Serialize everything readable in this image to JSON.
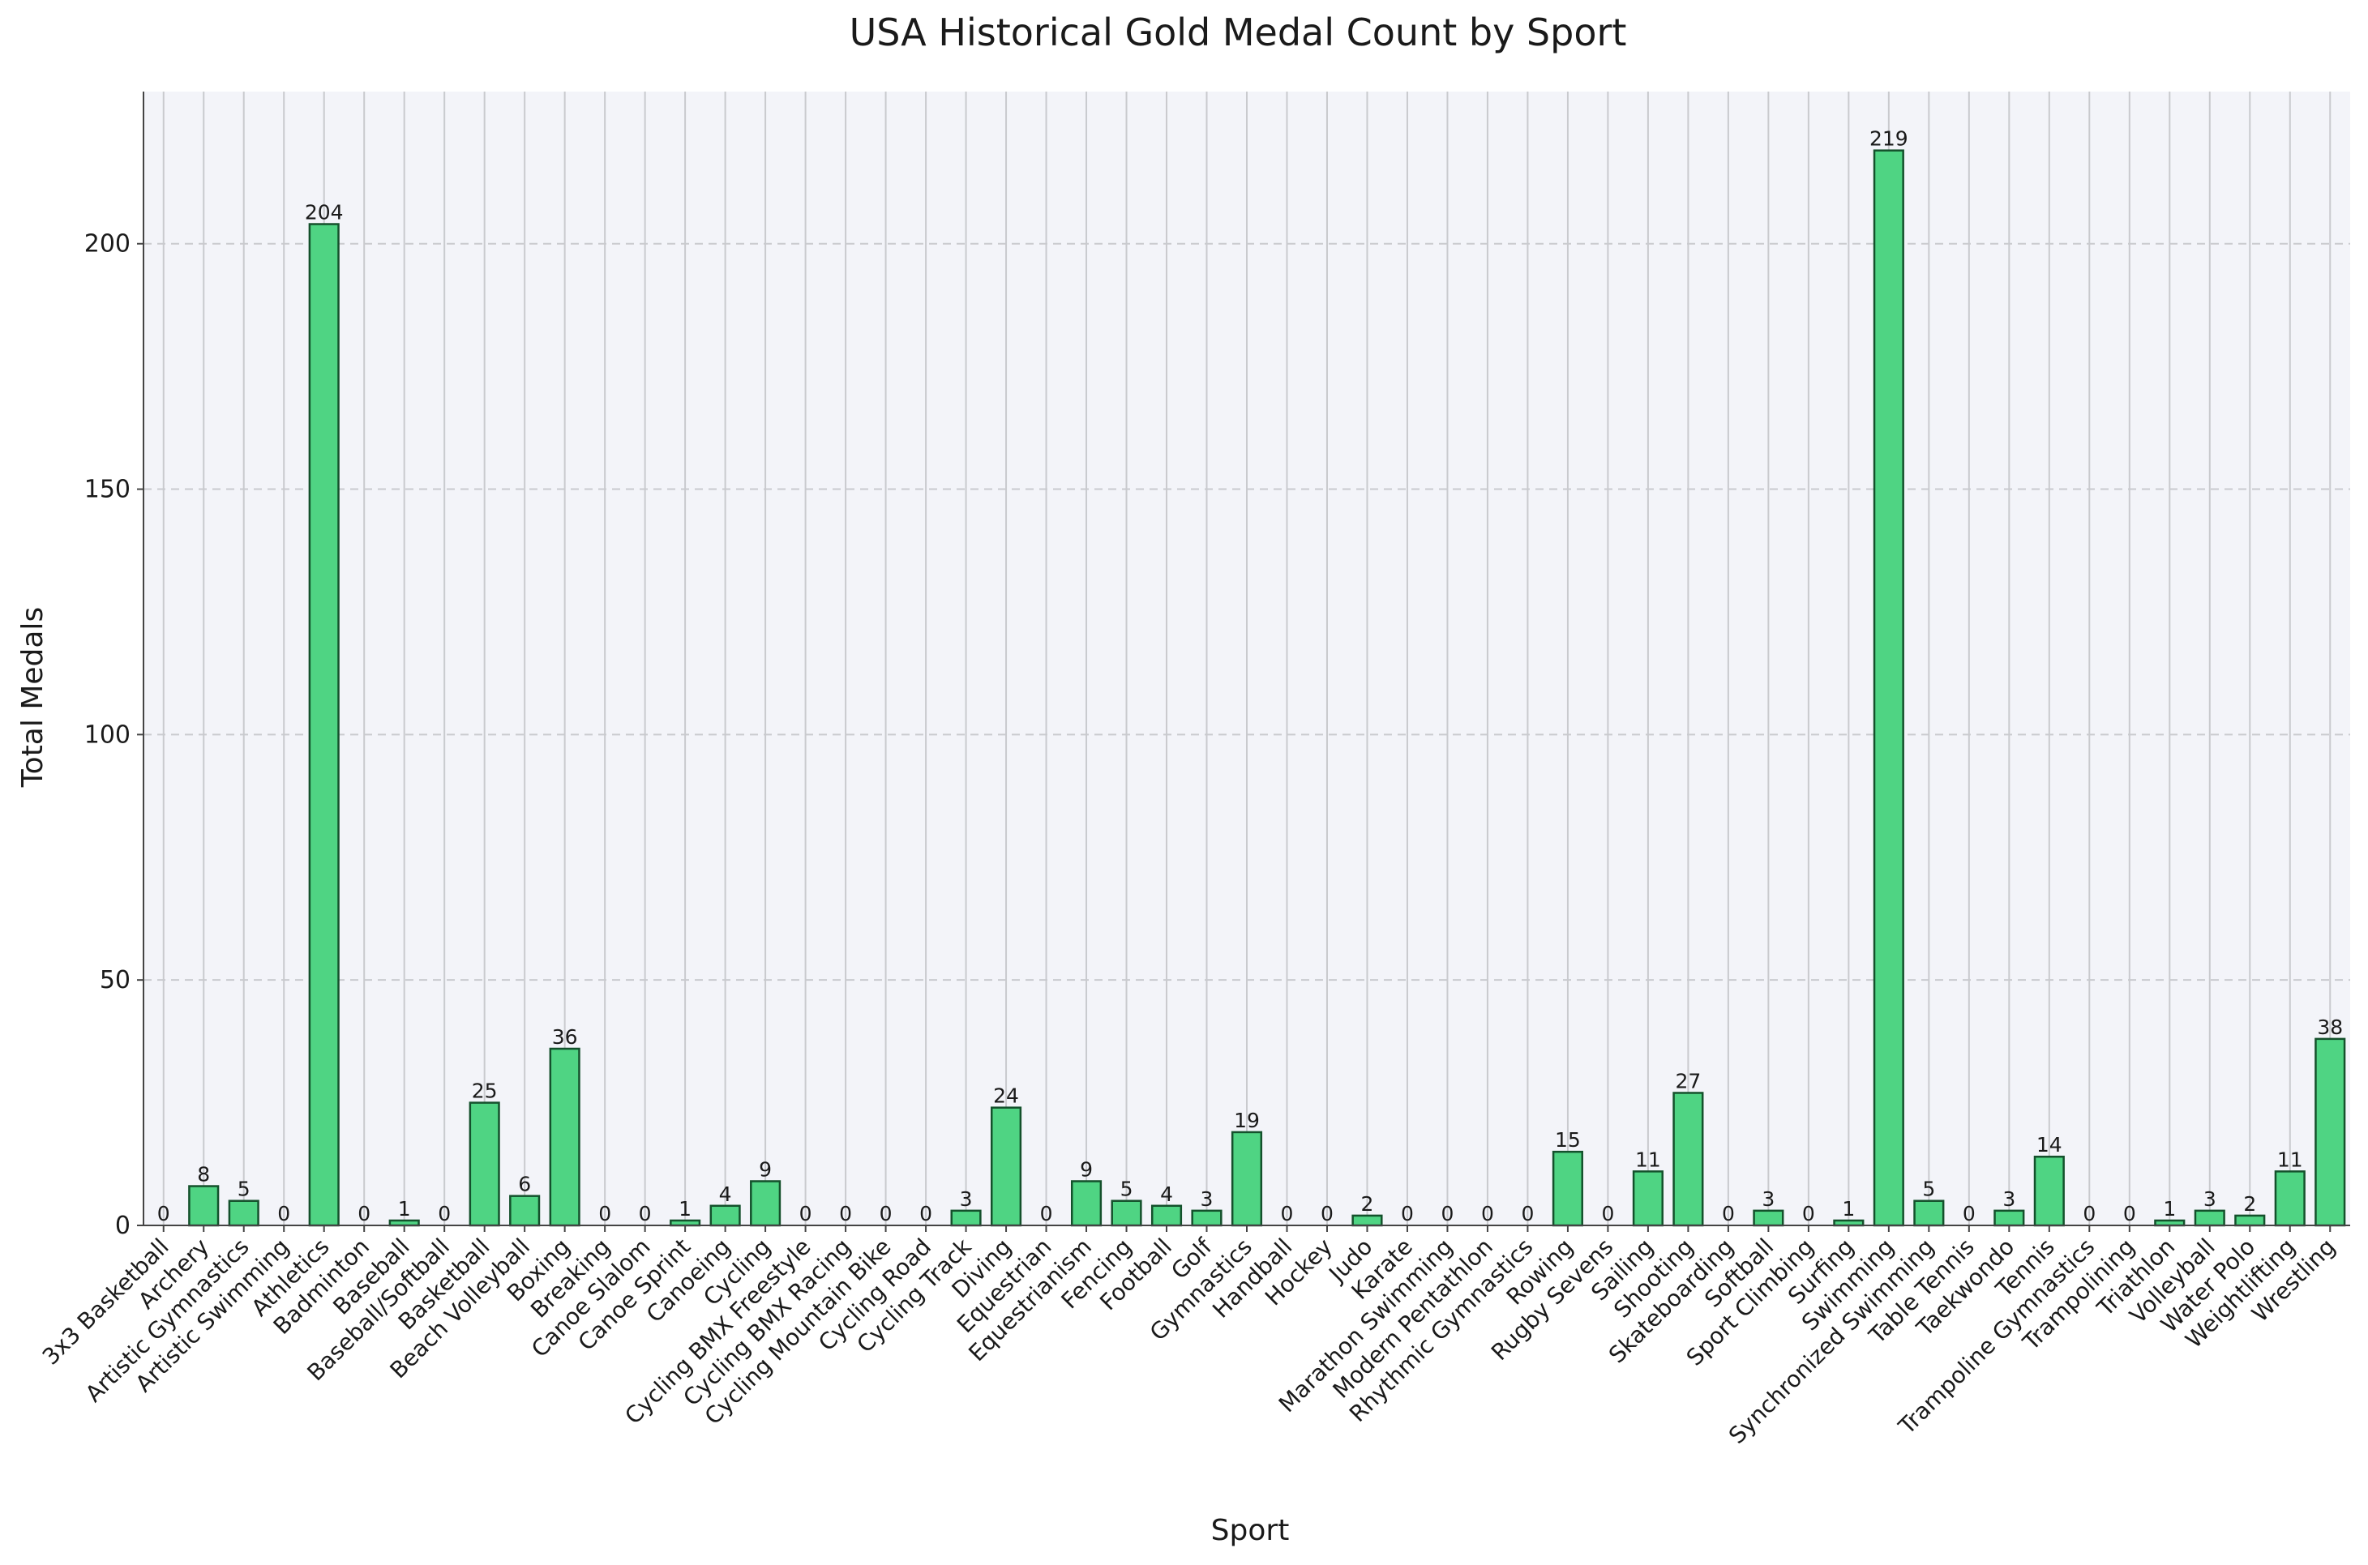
{
  "colors": {
    "bar_fill": "#4fd483",
    "bar_edge": "#14512c",
    "plot_background": "#f3f4f9",
    "grid": "#c9cace"
  },
  "chart_data": {
    "type": "bar",
    "title": "USA Historical Gold Medal Count by Sport",
    "xlabel": "Sport",
    "ylabel": "Total Medals",
    "ylim": [
      0,
      231
    ],
    "yticks": [
      0,
      50,
      100,
      150,
      200
    ],
    "grid": "on",
    "legend": "none",
    "categories": [
      "3x3 Basketball",
      "Archery",
      "Artistic Gymnastics",
      "Artistic Swimming",
      "Athletics",
      "Badminton",
      "Baseball",
      "Baseball/Softball",
      "Basketball",
      "Beach Volleyball",
      "Boxing",
      "Breaking",
      "Canoe Slalom",
      "Canoe Sprint",
      "Canoeing",
      "Cycling",
      "Cycling BMX Freestyle",
      "Cycling BMX Racing",
      "Cycling Mountain Bike",
      "Cycling Road",
      "Cycling Track",
      "Diving",
      "Equestrian",
      "Equestrianism",
      "Fencing",
      "Football",
      "Golf",
      "Gymnastics",
      "Handball",
      "Hockey",
      "Judo",
      "Karate",
      "Marathon Swimming",
      "Modern Pentathlon",
      "Rhythmic Gymnastics",
      "Rowing",
      "Rugby Sevens",
      "Sailing",
      "Shooting",
      "Skateboarding",
      "Softball",
      "Sport Climbing",
      "Surfing",
      "Swimming",
      "Synchronized Swimming",
      "Table Tennis",
      "Taekwondo",
      "Tennis",
      "Trampoline Gymnastics",
      "Trampolining",
      "Triathlon",
      "Volleyball",
      "Water Polo",
      "Weightlifting",
      "Wrestling"
    ],
    "values": [
      0,
      8,
      5,
      0,
      204,
      0,
      1,
      0,
      25,
      6,
      36,
      0,
      0,
      1,
      4,
      9,
      0,
      0,
      0,
      0,
      3,
      24,
      0,
      9,
      5,
      4,
      3,
      19,
      0,
      0,
      2,
      0,
      0,
      0,
      0,
      15,
      0,
      11,
      27,
      0,
      3,
      0,
      1,
      219,
      5,
      0,
      3,
      14,
      0,
      0,
      1,
      3,
      2,
      11,
      38
    ]
  }
}
